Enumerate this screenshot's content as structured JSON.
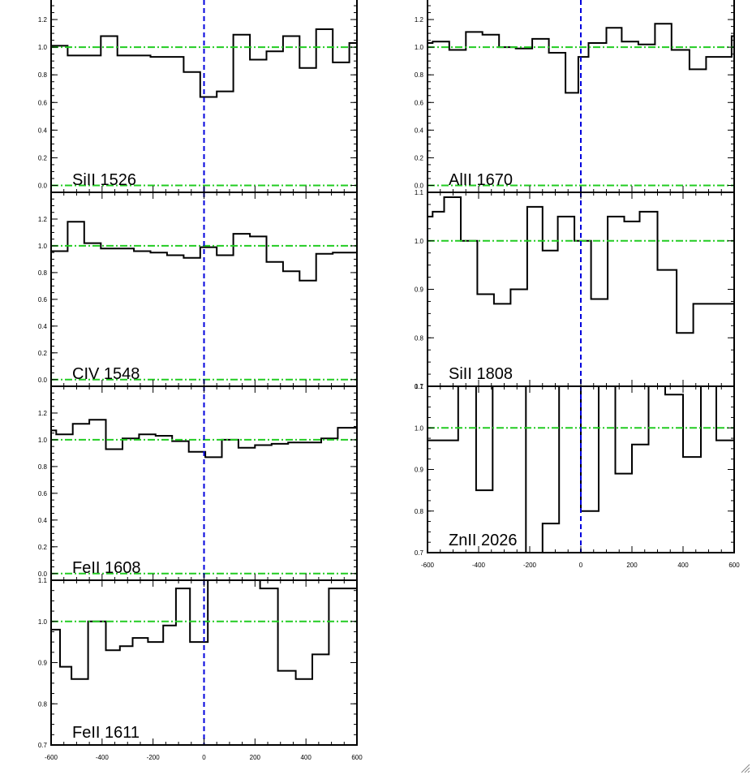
{
  "colors": {
    "spectrum": "#000000",
    "zero_velocity": "#0000dd",
    "reference": "#22cc22",
    "frame": "#000000"
  },
  "chart_data": [
    {
      "type": "line",
      "label": "SiII 1526",
      "xlim": [
        -600,
        600
      ],
      "ylim": [
        -0.05,
        1.4
      ],
      "yticks": [
        0.0,
        0.2,
        0.4,
        0.6,
        0.8,
        1.0,
        1.2
      ],
      "ytick_labels": [
        "0.0",
        "0.2",
        "0.4",
        "0.6",
        "0.8",
        "1.0",
        "1.2"
      ],
      "xticks": [],
      "xtick_labels": [],
      "reference_lines": [
        1.0,
        0.0
      ],
      "x": [
        -600,
        -535,
        -470,
        -405,
        -340,
        -275,
        -210,
        -145,
        -80,
        -15,
        50,
        115,
        180,
        245,
        310,
        375,
        440,
        505,
        570,
        600
      ],
      "y": [
        1.01,
        0.94,
        0.94,
        1.08,
        0.94,
        0.94,
        0.93,
        0.93,
        0.82,
        0.64,
        0.68,
        1.09,
        0.91,
        0.97,
        1.08,
        0.85,
        1.13,
        0.89,
        1.03,
        1.03
      ]
    },
    {
      "type": "line",
      "label": "CIV 1548",
      "xlim": [
        -600,
        600
      ],
      "ylim": [
        -0.05,
        1.4
      ],
      "yticks": [
        0.0,
        0.2,
        0.4,
        0.6,
        0.8,
        1.0,
        1.2
      ],
      "ytick_labels": [
        "0.0",
        "0.2",
        "0.4",
        "0.6",
        "0.8",
        "1.0",
        "1.2"
      ],
      "xticks": [],
      "xtick_labels": [],
      "reference_lines": [
        1.0,
        0.0
      ],
      "x": [
        -600,
        -535,
        -470,
        -405,
        -340,
        -275,
        -210,
        -145,
        -80,
        -15,
        50,
        115,
        180,
        245,
        310,
        375,
        440,
        505,
        570,
        600
      ],
      "y": [
        0.96,
        1.18,
        1.02,
        0.98,
        0.98,
        0.96,
        0.95,
        0.93,
        0.91,
        0.99,
        0.93,
        1.09,
        1.07,
        0.88,
        0.81,
        0.74,
        0.94,
        0.95,
        0.95,
        0.95
      ]
    },
    {
      "type": "line",
      "label": "FeII 1608",
      "xlim": [
        -600,
        600
      ],
      "ylim": [
        -0.05,
        1.4
      ],
      "yticks": [
        0.0,
        0.2,
        0.4,
        0.6,
        0.8,
        1.0,
        1.2
      ],
      "ytick_labels": [
        "0.0",
        "0.2",
        "0.4",
        "0.6",
        "0.8",
        "1.0",
        "1.2"
      ],
      "xticks": [],
      "xtick_labels": [],
      "reference_lines": [
        1.0,
        0.0
      ],
      "x": [
        -600,
        -580,
        -515,
        -450,
        -385,
        -320,
        -255,
        -190,
        -125,
        -60,
        5,
        70,
        135,
        200,
        265,
        330,
        395,
        460,
        525,
        590,
        600
      ],
      "y": [
        1.07,
        1.04,
        1.12,
        1.15,
        0.93,
        1.01,
        1.04,
        1.03,
        0.99,
        0.91,
        0.87,
        1.0,
        0.94,
        0.96,
        0.97,
        0.98,
        0.98,
        1.01,
        1.09,
        1.09,
        1.09
      ]
    },
    {
      "type": "line",
      "label": "FeII 1611",
      "xlim": [
        -600,
        600
      ],
      "ylim": [
        0.7,
        1.1
      ],
      "yticks": [
        0.7,
        0.8,
        0.9,
        1.0,
        1.1
      ],
      "ytick_labels": [
        "0.7",
        "0.8",
        "0.9",
        "1.0",
        "1.1"
      ],
      "xticks": [
        -600,
        -400,
        -200,
        0,
        200,
        400,
        600
      ],
      "xtick_labels": [
        "-600",
        "-400",
        "-200",
        "0",
        "200",
        "400",
        "600"
      ],
      "reference_lines": [
        1.0
      ],
      "x": [
        -600,
        -565,
        -520,
        -455,
        -385,
        -330,
        -280,
        -220,
        -160,
        -110,
        -55,
        15,
        85,
        150,
        220,
        290,
        360,
        425,
        490,
        590,
        600
      ],
      "y": [
        0.98,
        0.89,
        0.86,
        1.0,
        0.93,
        0.94,
        0.96,
        0.95,
        0.99,
        1.08,
        0.95,
        1.14,
        1.12,
        1.11,
        1.08,
        0.88,
        0.86,
        0.92,
        1.08,
        1.08,
        1.08
      ]
    },
    {
      "type": "line",
      "label": "AlII 1670",
      "xlim": [
        -600,
        600
      ],
      "ylim": [
        -0.05,
        1.4
      ],
      "yticks": [
        0.0,
        0.2,
        0.4,
        0.6,
        0.8,
        1.0,
        1.2
      ],
      "ytick_labels": [
        "0.0",
        "0.2",
        "0.4",
        "0.6",
        "0.8",
        "1.0",
        "1.2"
      ],
      "xticks": [],
      "xtick_labels": [],
      "reference_lines": [
        1.0,
        0.0
      ],
      "x": [
        -600,
        -580,
        -515,
        -450,
        -385,
        -320,
        -255,
        -190,
        -125,
        -60,
        -10,
        30,
        100,
        160,
        225,
        290,
        355,
        425,
        490,
        590,
        600
      ],
      "y": [
        1.03,
        1.04,
        0.98,
        1.11,
        1.09,
        1.0,
        0.99,
        1.06,
        0.96,
        0.67,
        0.93,
        1.03,
        1.14,
        1.04,
        1.02,
        1.17,
        0.98,
        0.84,
        0.93,
        1.08,
        1.08
      ]
    },
    {
      "type": "line",
      "label": "SiII 1808",
      "xlim": [
        -600,
        600
      ],
      "ylim": [
        0.7,
        1.1
      ],
      "yticks": [
        0.7,
        0.8,
        0.9,
        1.0,
        1.1
      ],
      "ytick_labels": [
        "0.7",
        "0.8",
        "0.9",
        "1.0",
        "1.1"
      ],
      "xticks": [],
      "xtick_labels": [],
      "reference_lines": [
        1.0
      ],
      "x": [
        -600,
        -580,
        -535,
        -470,
        -405,
        -340,
        -275,
        -210,
        -150,
        -90,
        -25,
        40,
        105,
        170,
        230,
        300,
        375,
        440,
        510,
        590,
        600
      ],
      "y": [
        1.05,
        1.06,
        1.09,
        1.0,
        0.89,
        0.87,
        0.9,
        1.07,
        0.98,
        1.05,
        1.0,
        0.88,
        1.05,
        1.04,
        1.06,
        0.94,
        0.81,
        0.87,
        0.87,
        0.87,
        0.87
      ]
    },
    {
      "type": "line",
      "label": "ZnII 2026",
      "xlim": [
        -600,
        600
      ],
      "ylim": [
        0.7,
        1.1
      ],
      "yticks": [
        0.7,
        0.8,
        0.9,
        1.0,
        1.1
      ],
      "ytick_labels": [
        "0.7",
        "0.8",
        "0.9",
        "1.0",
        "1.1"
      ],
      "xticks": [
        -600,
        -400,
        -200,
        0,
        200,
        400,
        600
      ],
      "xtick_labels": [
        "-600",
        "-400",
        "-200",
        "0",
        "200",
        "400",
        "600"
      ],
      "reference_lines": [
        1.0
      ],
      "x": [
        -600,
        -570,
        -525,
        -480,
        -410,
        -345,
        -280,
        -215,
        -150,
        -85,
        0,
        70,
        135,
        200,
        265,
        330,
        400,
        470,
        530,
        590,
        600
      ],
      "y": [
        0.97,
        0.97,
        0.97,
        1.2,
        0.85,
        1.2,
        1.2,
        0.6,
        0.77,
        1.2,
        0.8,
        1.2,
        0.89,
        0.96,
        1.2,
        1.08,
        0.93,
        1.2,
        0.97,
        0.97,
        0.97
      ]
    }
  ]
}
